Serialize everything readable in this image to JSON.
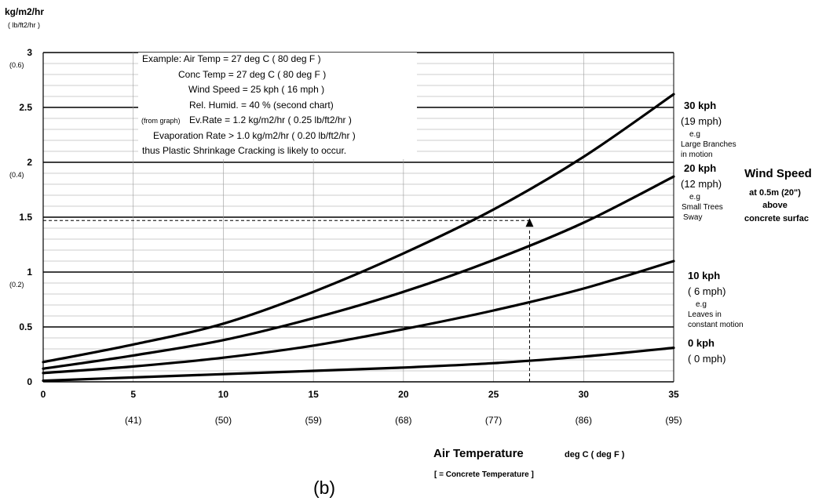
{
  "chart_data": {
    "type": "line",
    "y_unit": "kg/m2/hr",
    "y_unit_alt": "( lb/ft2/hr )",
    "xlim": [
      0,
      35
    ],
    "ylim": [
      0,
      3
    ],
    "x_ticks": [
      {
        "value": 0,
        "label": "0",
        "alt": ""
      },
      {
        "value": 5,
        "label": "5",
        "alt": "(41)"
      },
      {
        "value": 10,
        "label": "10",
        "alt": "(50)"
      },
      {
        "value": 15,
        "label": "15",
        "alt": "(59)"
      },
      {
        "value": 20,
        "label": "20",
        "alt": "(68)"
      },
      {
        "value": 25,
        "label": "25",
        "alt": "(77)"
      },
      {
        "value": 30,
        "label": "30",
        "alt": "(86)"
      },
      {
        "value": 35,
        "label": "35",
        "alt": "(95)"
      }
    ],
    "y_ticks": [
      {
        "value": 0,
        "label": "0",
        "alt": ""
      },
      {
        "value": 0.5,
        "label": "0.5",
        "alt": ""
      },
      {
        "value": 1,
        "label": "1",
        "alt": "(0.2)"
      },
      {
        "value": 1.5,
        "label": "1.5",
        "alt": ""
      },
      {
        "value": 2,
        "label": "2",
        "alt": "(0.4)"
      },
      {
        "value": 2.5,
        "label": "2.5",
        "alt": ""
      },
      {
        "value": 3,
        "label": "3",
        "alt": "(0.6)"
      }
    ],
    "xlabel": "Air Temperature",
    "xlabel_units": "deg C  ( deg F )",
    "xlabel_note": "[ = Concrete Temperature ]",
    "panel_label": "(b)",
    "grid": true,
    "series": [
      {
        "label_lines": [
          "0 kph",
          "( 0 mph)"
        ],
        "x": [
          0,
          5,
          10,
          15,
          20,
          25,
          30,
          35
        ],
        "values": [
          0.01,
          0.04,
          0.07,
          0.1,
          0.13,
          0.17,
          0.23,
          0.31
        ]
      },
      {
        "label_lines": [
          "10 kph",
          "( 6 mph)",
          "e.g",
          "Leaves in",
          "constant motion"
        ],
        "x": [
          0,
          5,
          10,
          15,
          20,
          25,
          30,
          35
        ],
        "values": [
          0.08,
          0.14,
          0.22,
          0.33,
          0.48,
          0.65,
          0.85,
          1.1
        ]
      },
      {
        "label_lines": [
          "20 kph",
          "(12 mph)",
          "e.g",
          "Small Trees",
          "Sway"
        ],
        "x": [
          0,
          5,
          10,
          15,
          20,
          25,
          30,
          35
        ],
        "values": [
          0.12,
          0.24,
          0.38,
          0.58,
          0.82,
          1.11,
          1.45,
          1.87
        ]
      },
      {
        "label_lines": [
          "30 kph",
          "(19 mph)",
          "e.g",
          "Large Branches",
          "in motion"
        ],
        "x": [
          0,
          5,
          10,
          15,
          20,
          25,
          30,
          35
        ],
        "values": [
          0.18,
          0.34,
          0.53,
          0.82,
          1.17,
          1.57,
          2.05,
          2.62
        ]
      }
    ],
    "legend_title": "Wind Speed",
    "legend_subtitle": [
      "at 0.5m (20\")",
      "above",
      "concrete surfac"
    ],
    "example_lines": [
      "Example: Air Temp = 27 deg C ( 80 deg F )",
      "Conc Temp = 27 deg C ( 80 deg F )",
      "Wind Speed = 25 kph ( 16 mph )",
      "Rel. Humid. = 40 % (second chart)",
      "Ev.Rate  = 1.2 kg/m2/hr ( 0.25 lb/ft2/hr )",
      "Evaporation Rate > 1.0 kg/m2/hr ( 0.20 lb/ft2/hr )",
      "thus Plastic Shrinkage Cracking is likely to occur."
    ],
    "example_prefix": "(from graph)",
    "example_marker": {
      "x": 27,
      "y": 1.47
    }
  }
}
